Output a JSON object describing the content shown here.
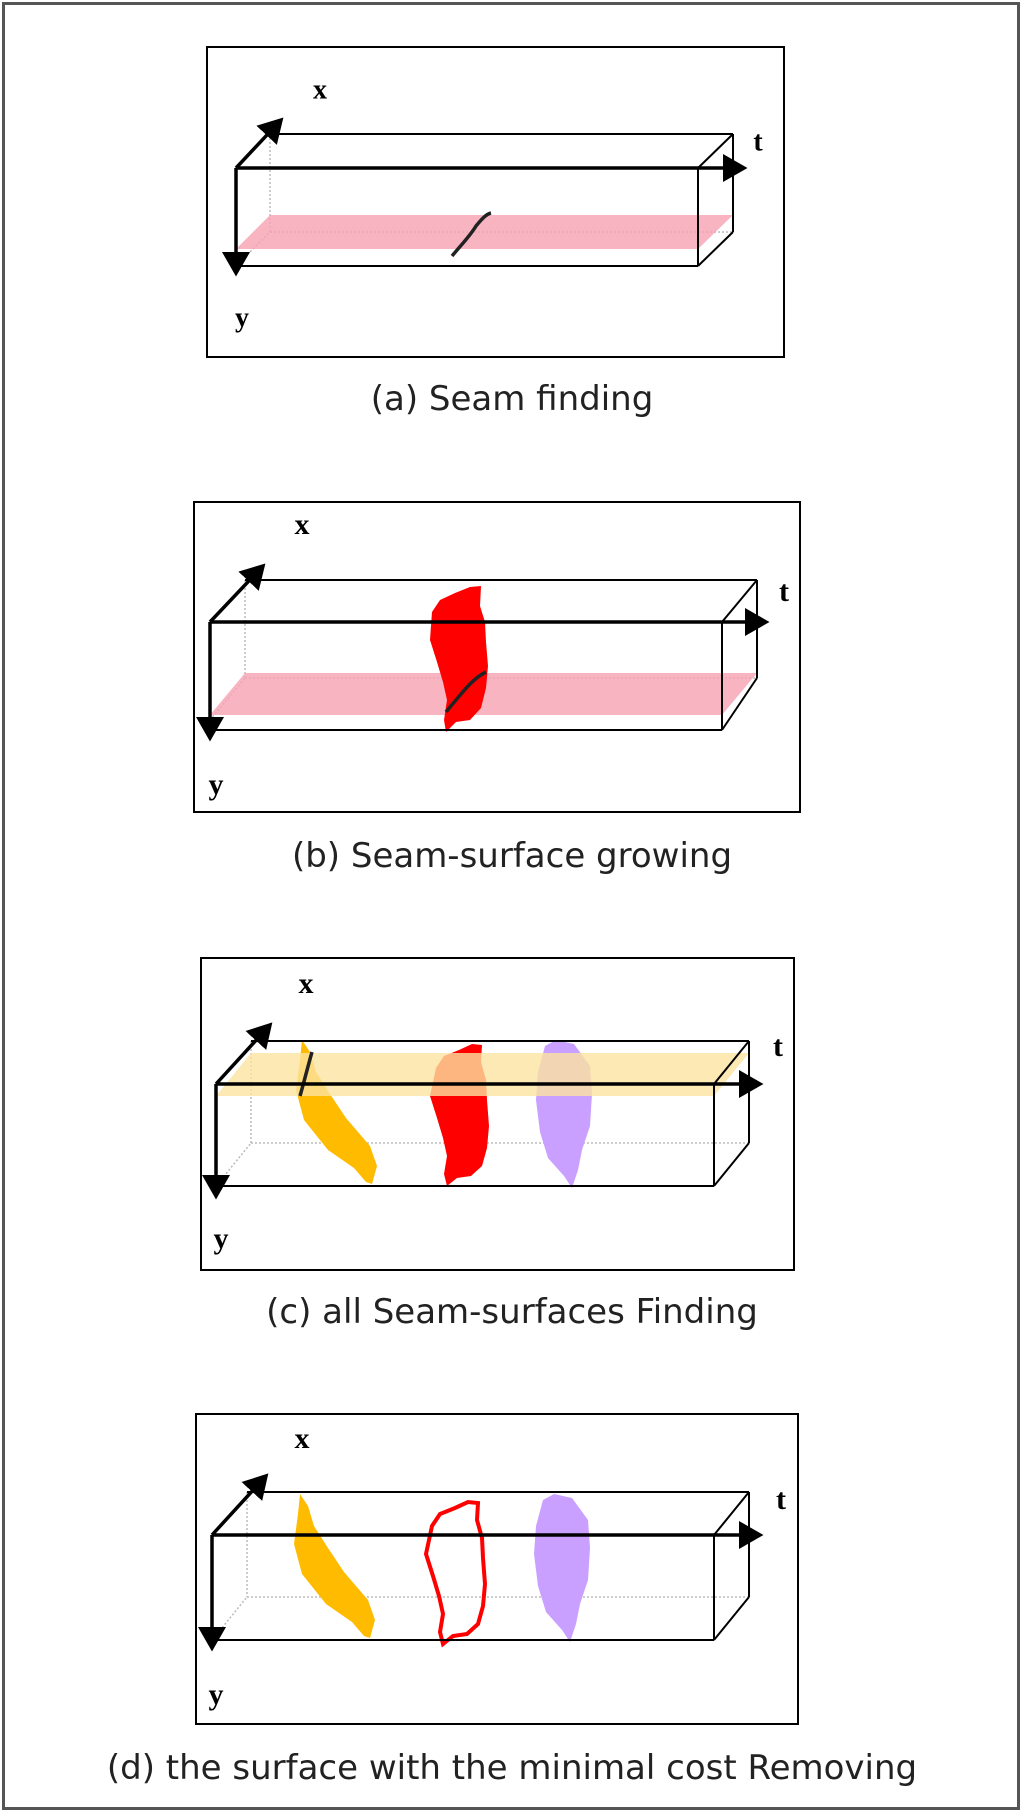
{
  "axes": {
    "x": "x",
    "y": "y",
    "t": "t"
  },
  "captions": {
    "a": "(a) Seam finding",
    "b": "(b) Seam-surface growing",
    "c": "(c) all Seam-surfaces Finding",
    "d": "(d) the surface with the minimal cost Removing"
  },
  "colors": {
    "pink_plane": "#f7a1b3",
    "yellow_plane": "#fde3a0",
    "red_surface": "#ff0000",
    "orange_surface": "#ffbb00",
    "purple_surface": "#c9a0ff",
    "seam_line": "#222222"
  }
}
